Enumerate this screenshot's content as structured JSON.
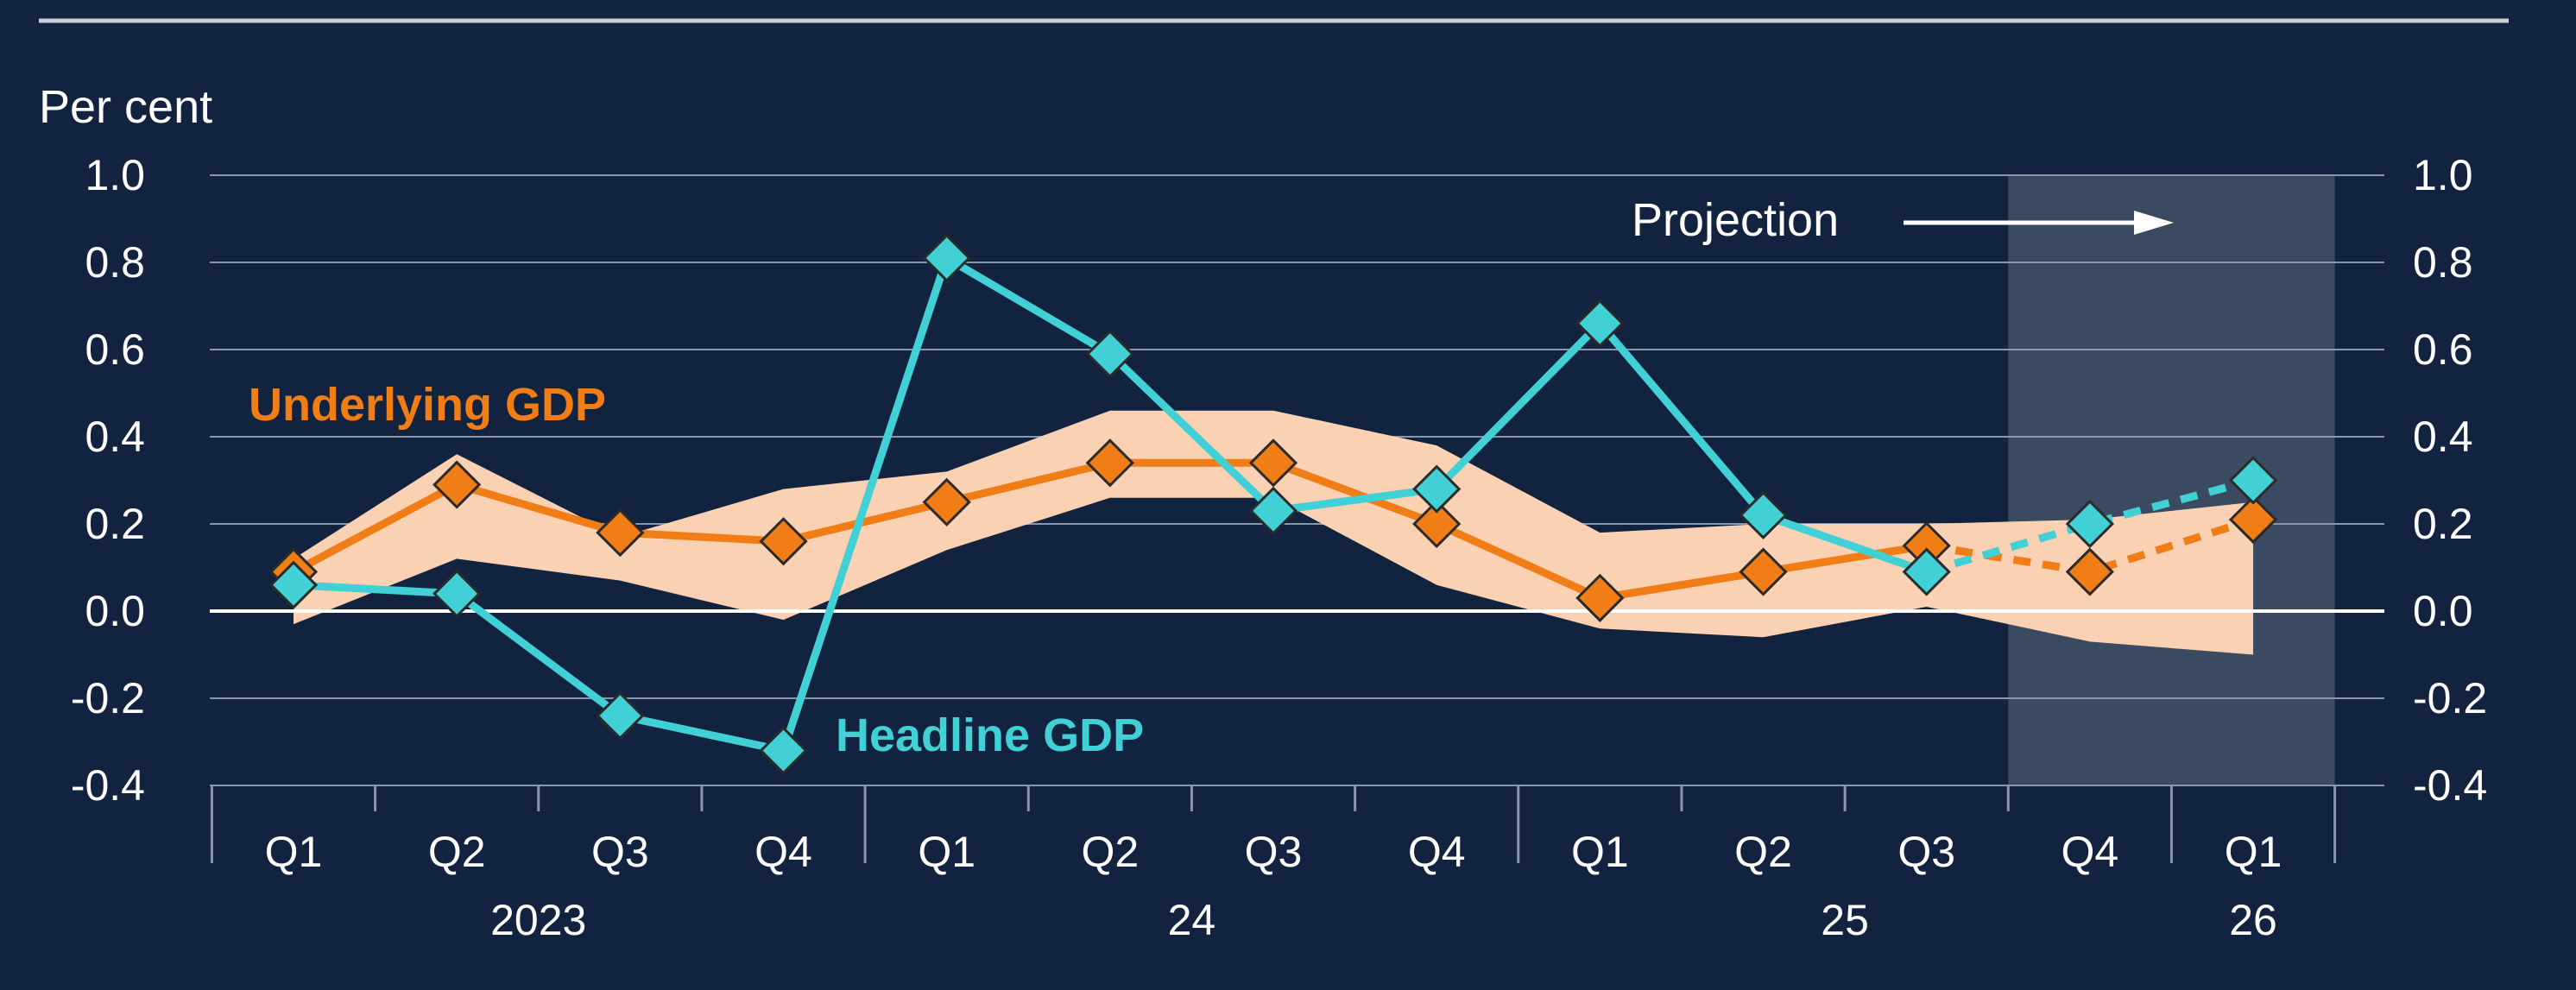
{
  "chart_data": {
    "type": "line",
    "ylabel": "Per cent",
    "ylim": [
      -0.4,
      1.0
    ],
    "yticks": [
      "1.0",
      "0.8",
      "0.6",
      "0.4",
      "0.2",
      "0.0",
      "-0.2",
      "-0.4"
    ],
    "ytick_values": [
      1.0,
      0.8,
      0.6,
      0.4,
      0.2,
      0.0,
      -0.2,
      -0.4
    ],
    "categories": [
      "Q1",
      "Q2",
      "Q3",
      "Q4",
      "Q1",
      "Q2",
      "Q3",
      "Q4",
      "Q1",
      "Q2",
      "Q3",
      "Q4",
      "Q1"
    ],
    "years": [
      {
        "label": "2023",
        "start": 0,
        "end": 3
      },
      {
        "label": "24",
        "start": 4,
        "end": 7
      },
      {
        "label": "25",
        "start": 8,
        "end": 11
      },
      {
        "label": "26",
        "start": 12,
        "end": 12
      }
    ],
    "projection_label": "Projection",
    "projection_start_index": 11,
    "series": [
      {
        "name": "Underlying GDP",
        "color": "#f07d16",
        "values": [
          0.09,
          0.29,
          0.18,
          0.16,
          0.25,
          0.34,
          0.34,
          0.2,
          0.03,
          0.09,
          0.15,
          0.09,
          0.21
        ]
      },
      {
        "name": "Headline GDP",
        "color": "#40d0d5",
        "values": [
          0.06,
          0.04,
          -0.24,
          -0.32,
          0.81,
          0.59,
          0.23,
          0.28,
          0.66,
          0.22,
          0.09,
          0.2,
          0.3
        ]
      }
    ],
    "band": {
      "name": "Underlying GDP range",
      "color": "#fbd1b3",
      "upper": [
        0.12,
        0.36,
        0.17,
        0.28,
        0.32,
        0.46,
        0.46,
        0.38,
        0.18,
        0.2,
        0.2,
        0.21,
        0.25
      ],
      "lower": [
        -0.03,
        0.12,
        0.07,
        -0.02,
        0.14,
        0.26,
        0.26,
        0.06,
        -0.04,
        -0.06,
        0.01,
        -0.07,
        -0.1
      ]
    }
  },
  "colors": {
    "background": "#12233f",
    "grid": "#8a96ab",
    "projection_shade": "#3a4a61",
    "marker_stroke": "#2a2a2a"
  }
}
